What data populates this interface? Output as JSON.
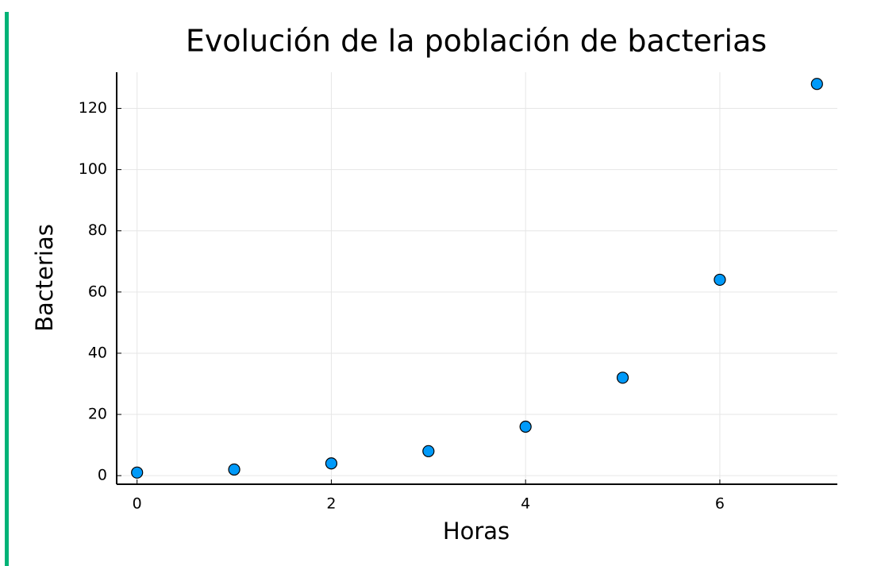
{
  "chart_data": {
    "type": "scatter",
    "title": "Evolución de la población de bacterias",
    "x_label": "Horas",
    "y_label": "Bacterias",
    "x": [
      0,
      1,
      2,
      3,
      4,
      5,
      6,
      7
    ],
    "series": [
      {
        "color": "#009af9",
        "values": [
          1,
          2,
          4,
          8,
          16,
          32,
          64,
          128
        ]
      }
    ],
    "xlim": [
      -0.21,
      7.21
    ],
    "xticks": [
      0,
      2,
      4,
      6
    ],
    "ylim": [
      -2.81,
      131.81
    ],
    "yticks": [
      0,
      20,
      40,
      60,
      80,
      100,
      120
    ],
    "grid": true
  }
}
